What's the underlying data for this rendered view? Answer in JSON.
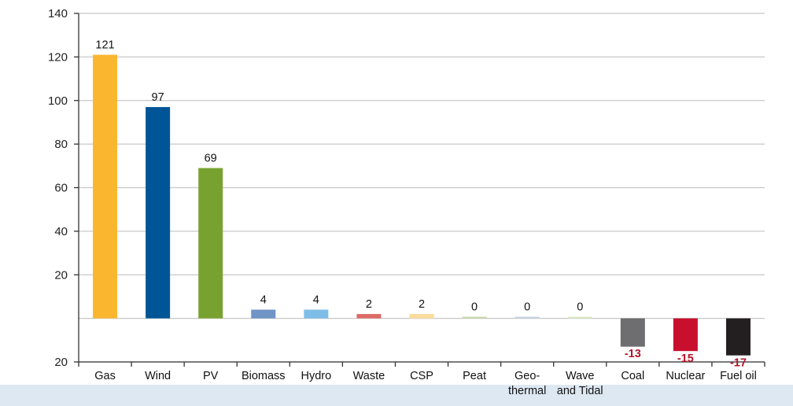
{
  "chart_data": {
    "type": "bar",
    "title": "",
    "xlabel": "",
    "ylabel": "",
    "ylim": [
      -20,
      140
    ],
    "y_ticks": [
      {
        "value": 140,
        "label": "140"
      },
      {
        "value": 120,
        "label": "120"
      },
      {
        "value": 100,
        "label": "100"
      },
      {
        "value": 80,
        "label": "80"
      },
      {
        "value": 60,
        "label": "60"
      },
      {
        "value": 40,
        "label": "40"
      },
      {
        "value": 20,
        "label": "20"
      },
      {
        "value": -20,
        "label": "20"
      }
    ],
    "grid": true,
    "categories": [
      [
        "Gas"
      ],
      [
        "Wind"
      ],
      [
        "PV"
      ],
      [
        "Biomass"
      ],
      [
        "Hydro"
      ],
      [
        "Waste"
      ],
      [
        "CSP"
      ],
      [
        "Peat"
      ],
      [
        "Geo-",
        "thermal"
      ],
      [
        "Wave",
        "and Tidal"
      ],
      [
        "Coal"
      ],
      [
        "Nuclear"
      ],
      [
        "Fuel oil"
      ]
    ],
    "values": [
      121,
      97,
      69,
      4,
      4,
      2,
      2,
      0,
      0,
      0,
      -13,
      -15,
      -17
    ],
    "value_labels": [
      "121",
      "97",
      "69",
      "4",
      "4",
      "2",
      "2",
      "0",
      "0",
      "0",
      "-13",
      "-15",
      "-17"
    ],
    "colors": [
      "#fbb630",
      "#005596",
      "#78a22f",
      "#7094c6",
      "#7dbde8",
      "#dd6b65",
      "#fddc9c",
      "#c6d7ab",
      "#c5cfe0",
      "#d9e7c5",
      "#6e6e70",
      "#c8102e",
      "#231f20"
    ],
    "negative_label_color": "#b5152b"
  }
}
